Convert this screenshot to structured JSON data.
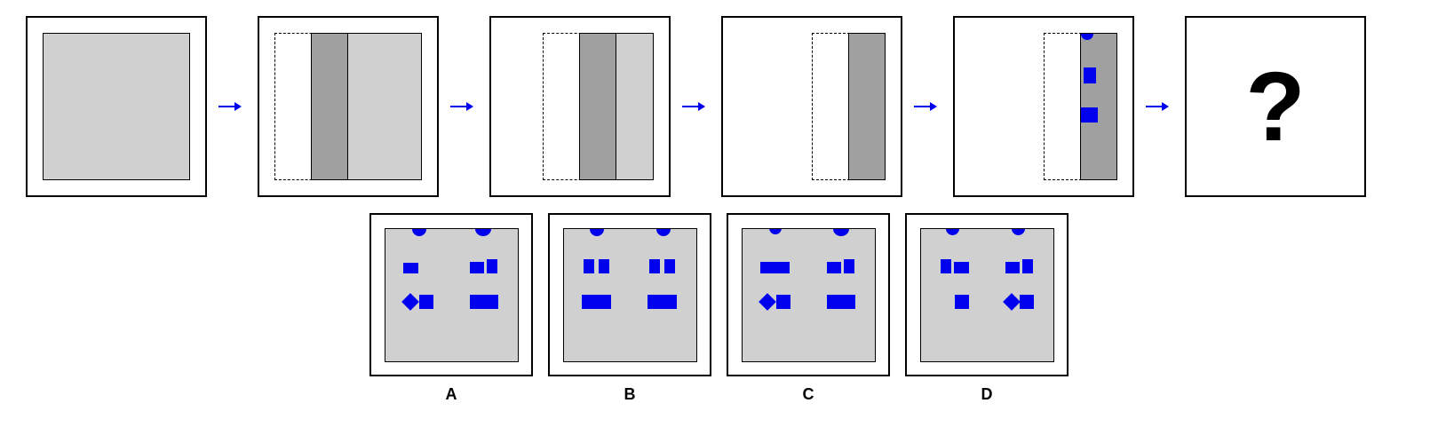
{
  "question_mark": "?",
  "options": [
    {
      "label": "A"
    },
    {
      "label": "B"
    },
    {
      "label": "C"
    },
    {
      "label": "D"
    }
  ],
  "colors": {
    "light_gray": "#d0d0d0",
    "dark_gray": "#a0a0a0",
    "blue": "#0000ee"
  }
}
